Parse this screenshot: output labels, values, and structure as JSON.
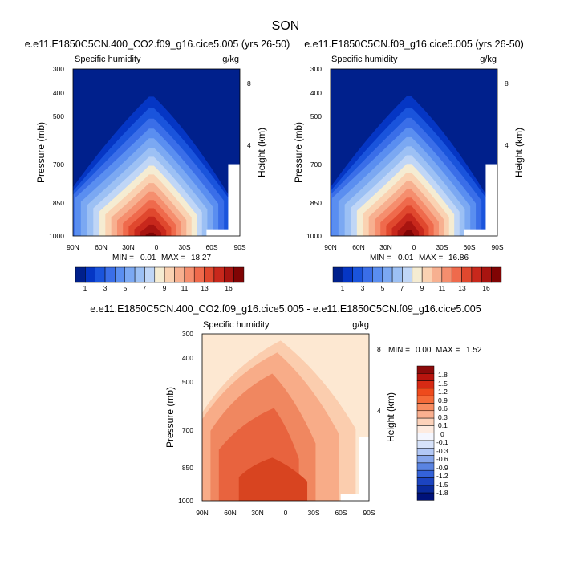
{
  "figure": {
    "title": "SON"
  },
  "chart_data": [
    {
      "type": "contour",
      "panel": "top-left",
      "title": "e.e11.E1850C5CN.400_CO2.f09_g16.cice5.005 (yrs 26-50)",
      "left_label": "Specific humidity",
      "units": "g/kg",
      "xlabel": "",
      "ylabel": "Pressure (mb)",
      "ylabel_right": "Height (km)",
      "x_ticks": [
        "90N",
        "60N",
        "30N",
        "0",
        "30S",
        "60S",
        "90S"
      ],
      "y_ticks": [
        "300",
        "400",
        "500",
        "700",
        "850",
        "1000"
      ],
      "right_ticks": [
        "8",
        "4"
      ],
      "min_label": "MIN =",
      "min": "0.01",
      "max_label": "MAX =",
      "max": "18.27",
      "colorbar_labels": [
        "1",
        "3",
        "5",
        "7",
        "9",
        "11",
        "13",
        "16"
      ],
      "colors": [
        "#00208c",
        "#0536c4",
        "#1a54dc",
        "#3a6ee8",
        "#5a8ef0",
        "#7ba8f2",
        "#9cc0f4",
        "#c0d6f6",
        "#f5ecd2",
        "#fad2b2",
        "#f7b090",
        "#f58e6e",
        "#ef6a4c",
        "#e0482e",
        "#c8281c",
        "#a81410",
        "#800404"
      ],
      "colorbar_max": 16
    },
    {
      "type": "contour",
      "panel": "top-right",
      "title": "e.e11.E1850C5CN.f09_g16.cice5.005 (yrs 26-50)",
      "left_label": "Specific humidity",
      "units": "g/kg",
      "xlabel": "",
      "ylabel": "Pressure (mb)",
      "ylabel_right": "Height (km)",
      "x_ticks": [
        "90N",
        "60N",
        "30N",
        "0",
        "30S",
        "60S",
        "90S"
      ],
      "y_ticks": [
        "300",
        "400",
        "500",
        "700",
        "850",
        "1000"
      ],
      "right_ticks": [
        "8",
        "4"
      ],
      "min_label": "MIN =",
      "min": "0.01",
      "max_label": "MAX =",
      "max": "16.86",
      "colorbar_labels": [
        "1",
        "3",
        "5",
        "7",
        "9",
        "11",
        "13",
        "16"
      ],
      "colors": [
        "#00208c",
        "#0536c4",
        "#1a54dc",
        "#3a6ee8",
        "#5a8ef0",
        "#7ba8f2",
        "#9cc0f4",
        "#c0d6f6",
        "#f5ecd2",
        "#fad2b2",
        "#f7b090",
        "#f58e6e",
        "#ef6a4c",
        "#e0482e",
        "#c8281c",
        "#a81410",
        "#800404"
      ],
      "colorbar_max": 16
    },
    {
      "type": "contour",
      "panel": "bottom",
      "title": "e.e11.E1850C5CN.400_CO2.f09_g16.cice5.005 - e.e11.E1850C5CN.f09_g16.cice5.005",
      "left_label": "Specific humidity",
      "units": "g/kg",
      "xlabel": "",
      "ylabel": "Pressure (mb)",
      "ylabel_right": "Height (km)",
      "x_ticks": [
        "90N",
        "60N",
        "30N",
        "0",
        "30S",
        "60S",
        "90S"
      ],
      "y_ticks": [
        "300",
        "400",
        "500",
        "700",
        "850",
        "1000"
      ],
      "right_ticks": [
        "8",
        "4"
      ],
      "min_label": "MIN =",
      "min": "0.00",
      "max_label": "MAX =",
      "max": "1.52",
      "colorbar_labels": [
        "1.8",
        "1.5",
        "1.2",
        "0.9",
        "0.6",
        "0.3",
        "0.1",
        "0",
        "-0.1",
        "-0.3",
        "-0.6",
        "-0.9",
        "-1.2",
        "-1.5",
        "-1.8"
      ],
      "colors": [
        "#fde8d2",
        "#fbcdae",
        "#f8ac88",
        "#f08760",
        "#e8633e",
        "#d84420"
      ],
      "colorbar_colors": [
        "#8c0a0a",
        "#b8140e",
        "#d62a14",
        "#ee4a1c",
        "#f56a38",
        "#f88c60",
        "#fab090",
        "#fcd2ba",
        "#fdebe0",
        "#f4f6fe",
        "#d6e2fa",
        "#b2c8f6",
        "#86a6ec",
        "#5a84e2",
        "#3462d8",
        "#1c44c0",
        "#0a2a9c",
        "#00127a"
      ]
    }
  ]
}
